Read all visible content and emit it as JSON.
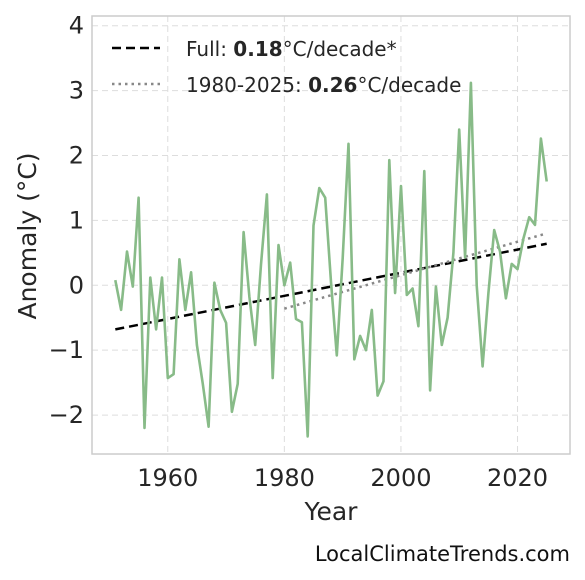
{
  "chart_data": {
    "type": "line",
    "xlabel": "Year",
    "ylabel": "Anomaly (°C)",
    "xlim": [
      1947,
      2029
    ],
    "ylim": [
      -2.6,
      4.15
    ],
    "xticks": [
      1960,
      1980,
      2000,
      2020
    ],
    "xtick_labels": [
      "1960",
      "1980",
      "2000",
      "2020"
    ],
    "yticks": [
      -2,
      -1,
      0,
      1,
      2,
      3,
      4
    ],
    "ytick_labels": [
      "−2",
      "−1",
      "0",
      "1",
      "2",
      "3",
      "4"
    ],
    "grid": true,
    "legend_position": "top-left",
    "x": [
      1951,
      1952,
      1953,
      1954,
      1955,
      1956,
      1957,
      1958,
      1959,
      1960,
      1961,
      1962,
      1963,
      1964,
      1965,
      1966,
      1967,
      1968,
      1969,
      1970,
      1971,
      1972,
      1973,
      1974,
      1975,
      1976,
      1977,
      1978,
      1979,
      1980,
      1981,
      1982,
      1983,
      1984,
      1985,
      1986,
      1987,
      1988,
      1989,
      1990,
      1991,
      1992,
      1993,
      1994,
      1995,
      1996,
      1997,
      1998,
      1999,
      2000,
      2001,
      2002,
      2003,
      2004,
      2005,
      2006,
      2007,
      2008,
      2009,
      2010,
      2011,
      2012,
      2013,
      2014,
      2015,
      2016,
      2017,
      2018,
      2019,
      2020,
      2021,
      2022,
      2023,
      2024,
      2025
    ],
    "series": [
      {
        "name": "",
        "color": "#88bb88",
        "values": [
          0.08,
          -0.38,
          0.52,
          -0.02,
          1.35,
          -2.2,
          0.12,
          -0.68,
          0.12,
          -1.43,
          -1.37,
          0.4,
          -0.38,
          0.2,
          -0.92,
          -1.52,
          -2.18,
          0.04,
          -0.38,
          -0.58,
          -1.95,
          -1.52,
          0.82,
          -0.18,
          -0.92,
          0.32,
          1.4,
          -1.43,
          0.62,
          0.0,
          0.35,
          -0.52,
          -0.57,
          -2.33,
          0.92,
          1.5,
          1.35,
          0.05,
          -1.08,
          0.42,
          2.18,
          -1.14,
          -0.78,
          -1.0,
          -0.38,
          -1.7,
          -1.48,
          1.93,
          -0.12,
          1.53,
          -0.15,
          -0.05,
          -0.63,
          1.76,
          -1.62,
          -0.02,
          -0.92,
          -0.5,
          0.5,
          2.4,
          0.43,
          3.12,
          0.0,
          -1.25,
          -0.12,
          0.85,
          0.52,
          -0.2,
          0.33,
          0.25,
          0.72,
          1.05,
          0.93,
          2.26,
          1.6
        ]
      }
    ],
    "trend_lines": [
      {
        "label_prefix": "Full: ",
        "label_value": "0.18",
        "label_suffix": "°C/decade*",
        "style": "dashed",
        "color": "#000000",
        "x": [
          1951,
          2025
        ],
        "y": [
          -0.68,
          0.64
        ]
      },
      {
        "label_prefix": "1980-2025: ",
        "label_value": "0.26",
        "label_suffix": "°C/decade",
        "style": "dotted",
        "color": "#888888",
        "x": [
          1980,
          2025
        ],
        "y": [
          -0.36,
          0.8
        ]
      }
    ]
  },
  "footer": {
    "source": "LocalClimateTrends.com"
  }
}
